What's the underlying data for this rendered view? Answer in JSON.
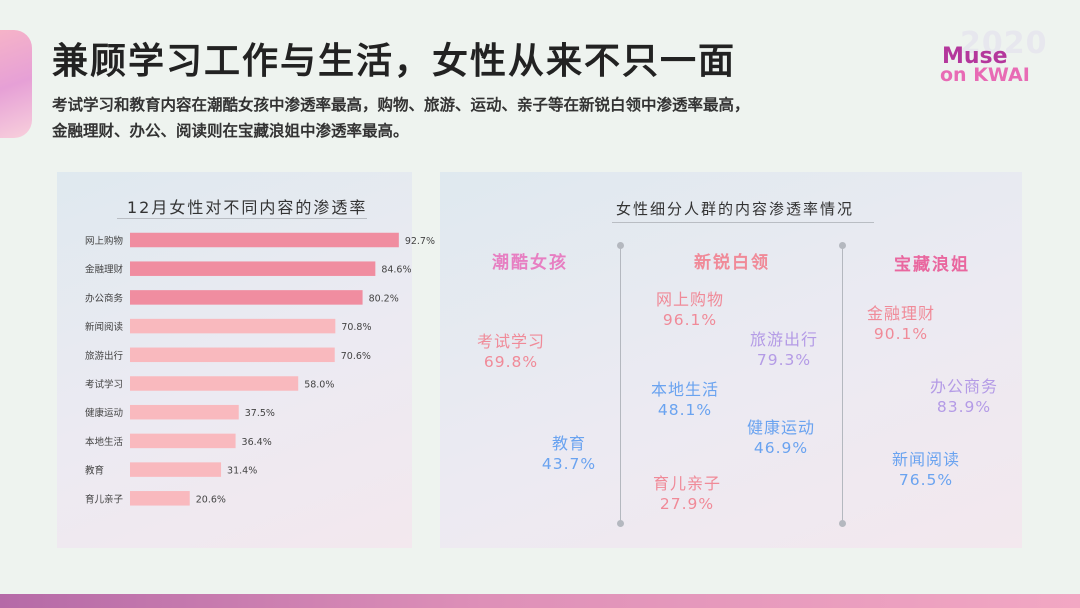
{
  "header": {
    "title": "兼顾学习工作与生活，女性从来不只一面",
    "subtitle_lines": [
      "考试学习和教育内容在潮酷女孩中渗透率最高，购物、旅游、运动、亲子等在新锐白领中渗透率最高，",
      "金融理财、办公、阅读则在宝藏浪姐中渗透率最高。"
    ]
  },
  "logo": {
    "year": "2020",
    "line1": "Muse",
    "line2": "on KWAI"
  },
  "colors": {
    "bar_high": "#f08da0",
    "bar_low": "#f9b9be",
    "group1": "#e77fc2",
    "group2": "#f39ca8",
    "group3": "#e9679f",
    "pink_text": "#f08a98",
    "blue_text": "#6aa3f0",
    "purple_text": "#b49be6"
  },
  "chart_data": [
    {
      "type": "bar",
      "orientation": "horizontal",
      "title": "12月女性对不同内容的渗透率",
      "categories": [
        "网上购物",
        "金融理财",
        "办公商务",
        "新闻阅读",
        "旅游出行",
        "考试学习",
        "健康运动",
        "本地生活",
        "教育",
        "育儿亲子"
      ],
      "values": [
        92.7,
        84.6,
        80.2,
        70.8,
        70.6,
        58.0,
        37.5,
        36.4,
        31.4,
        20.6
      ],
      "value_labels": [
        "92.7%",
        "84.6%",
        "80.2%",
        "70.8%",
        "70.6%",
        "58.0%",
        "37.5%",
        "36.4%",
        "31.4%",
        "20.6%"
      ],
      "highlight_top": 3,
      "xlim": [
        0,
        100
      ]
    },
    {
      "type": "table",
      "title": "女性细分人群的内容渗透率情况",
      "groups": [
        {
          "name": "潮酷女孩",
          "items": [
            {
              "label": "考试学习",
              "value": "69.8%",
              "tone": "pink"
            },
            {
              "label": "教育",
              "value": "43.7%",
              "tone": "blue"
            }
          ]
        },
        {
          "name": "新锐白领",
          "items": [
            {
              "label": "网上购物",
              "value": "96.1%",
              "tone": "pink"
            },
            {
              "label": "旅游出行",
              "value": "79.3%",
              "tone": "purple"
            },
            {
              "label": "本地生活",
              "value": "48.1%",
              "tone": "blue"
            },
            {
              "label": "健康运动",
              "value": "46.9%",
              "tone": "blue"
            },
            {
              "label": "育儿亲子",
              "value": "27.9%",
              "tone": "pink"
            }
          ]
        },
        {
          "name": "宝藏浪姐",
          "items": [
            {
              "label": "金融理财",
              "value": "90.1%",
              "tone": "pink"
            },
            {
              "label": "办公商务",
              "value": "83.9%",
              "tone": "purple"
            },
            {
              "label": "新闻阅读",
              "value": "76.5%",
              "tone": "blue"
            }
          ]
        }
      ]
    }
  ]
}
